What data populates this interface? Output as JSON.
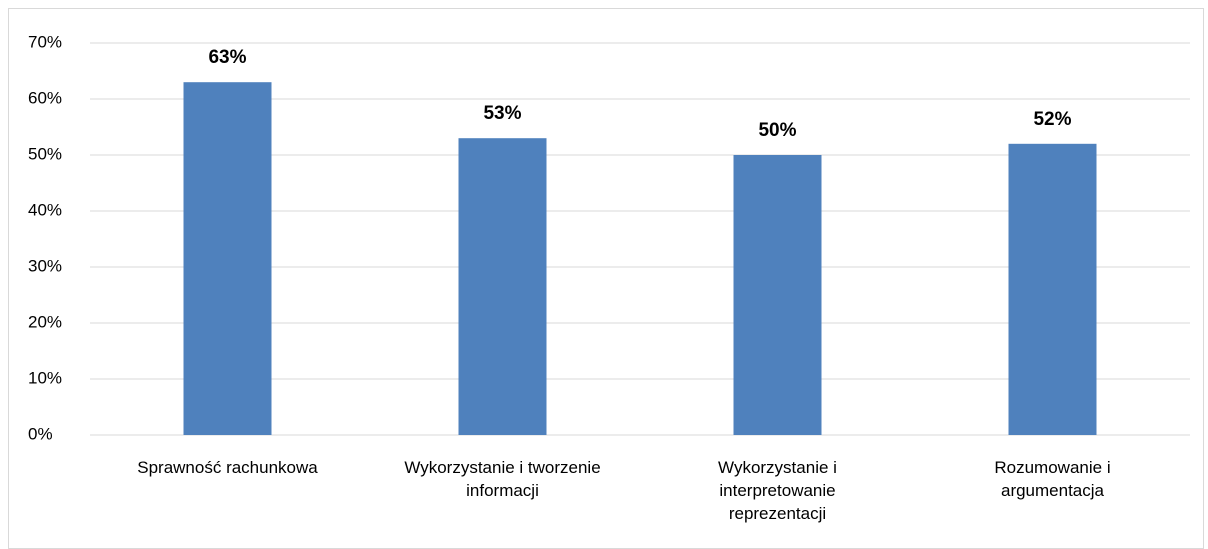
{
  "chart_data": {
    "type": "bar",
    "categories": [
      "Sprawność rachunkowa",
      "Wykorzystanie i tworzenie informacji",
      "Wykorzystanie i interpretowanie reprezentacji",
      "Rozumowanie i argumentacja"
    ],
    "values": [
      63,
      53,
      50,
      52
    ],
    "value_labels": [
      "63%",
      "53%",
      "50%",
      "52%"
    ],
    "color": "#4f81bd",
    "ylim": [
      0,
      70
    ],
    "yticks": [
      {
        "value": 0,
        "label": "0%"
      },
      {
        "value": 10,
        "label": "10%"
      },
      {
        "value": 20,
        "label": "20%"
      },
      {
        "value": 30,
        "label": "30%"
      },
      {
        "value": 40,
        "label": "40%"
      },
      {
        "value": 50,
        "label": "50%"
      },
      {
        "value": 60,
        "label": "60%"
      },
      {
        "value": 70,
        "label": "70%"
      }
    ],
    "grid": true
  }
}
